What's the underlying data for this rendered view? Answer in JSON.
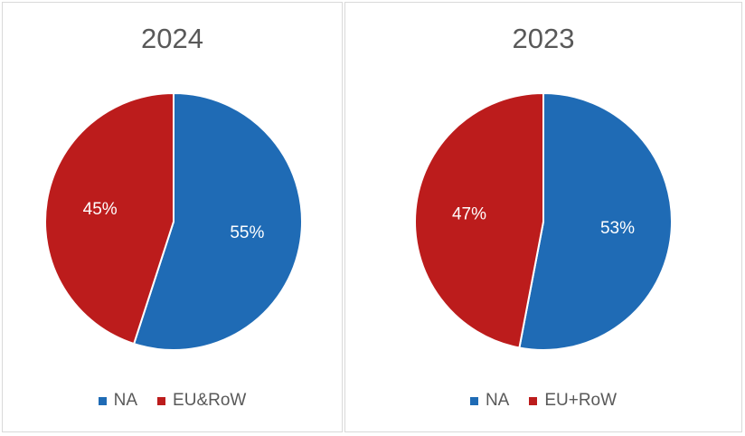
{
  "chart_data": [
    {
      "type": "pie",
      "title": "2024",
      "categories": [
        "NA",
        "EU&RoW"
      ],
      "values": [
        55,
        45
      ],
      "data_labels": [
        "55%",
        "45%"
      ],
      "colors": [
        "#1f6bb5",
        "#bc1c1c"
      ],
      "legend_position": "bottom"
    },
    {
      "type": "pie",
      "title": "2023",
      "categories": [
        "NA",
        "EU+RoW"
      ],
      "values": [
        53,
        47
      ],
      "data_labels": [
        "53%",
        "47%"
      ],
      "colors": [
        "#1f6bb5",
        "#bc1c1c"
      ],
      "legend_position": "bottom"
    }
  ]
}
